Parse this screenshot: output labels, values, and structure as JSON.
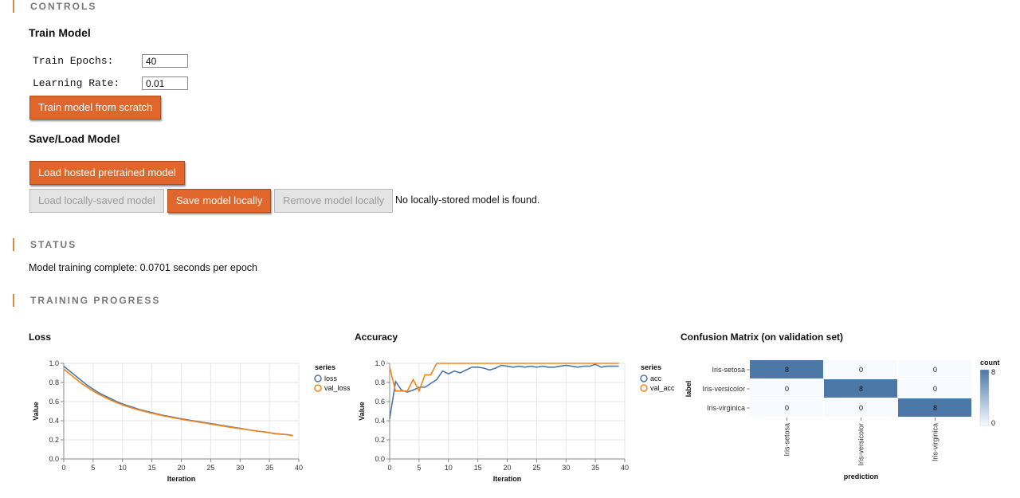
{
  "sections": {
    "controls": "CONTROLS",
    "status": "STATUS",
    "progress": "TRAINING PROGRESS"
  },
  "train": {
    "heading": "Train Model",
    "epochs_label": "Train Epochs:",
    "epochs_value": "40",
    "lr_label": "Learning Rate:",
    "lr_value": "0.01",
    "train_button": "Train model from scratch"
  },
  "saveload": {
    "heading": "Save/Load Model",
    "load_hosted": "Load hosted pretrained model",
    "load_local": "Load locally-saved model",
    "save_local": "Save model locally",
    "remove_local": "Remove model locally",
    "local_status": "No locally-stored model is found."
  },
  "status": {
    "text": "Model training complete: 0.0701 seconds per epoch"
  },
  "colors": {
    "accent": "#e0873d",
    "button": "#e0662b",
    "series_blue": "#4c78a8",
    "series_orange": "#f58518"
  },
  "chart_data": [
    {
      "type": "line",
      "title": "Loss",
      "xlabel": "Iteration",
      "ylabel": "Value",
      "xlim": [
        0,
        40
      ],
      "ylim": [
        0,
        1
      ],
      "x_ticks": [
        0,
        5,
        10,
        15,
        20,
        25,
        30,
        35,
        40
      ],
      "y_ticks": [
        "0.0",
        "0.2",
        "0.4",
        "0.6",
        "0.8",
        "1.0"
      ],
      "grid": true,
      "legend_title": "series",
      "legend_position": "right",
      "x": [
        0,
        1,
        2,
        3,
        4,
        5,
        6,
        7,
        8,
        9,
        10,
        11,
        12,
        13,
        14,
        15,
        16,
        17,
        18,
        19,
        20,
        21,
        22,
        23,
        24,
        25,
        26,
        27,
        28,
        29,
        30,
        31,
        32,
        33,
        34,
        35,
        36,
        37,
        38,
        39
      ],
      "series": [
        {
          "name": "loss",
          "color": "#4c78a8",
          "values": [
            0.97,
            0.92,
            0.87,
            0.82,
            0.77,
            0.73,
            0.69,
            0.66,
            0.63,
            0.6,
            0.575,
            0.555,
            0.535,
            0.515,
            0.5,
            0.485,
            0.47,
            0.455,
            0.445,
            0.432,
            0.42,
            0.41,
            0.4,
            0.39,
            0.38,
            0.37,
            0.36,
            0.35,
            0.34,
            0.33,
            0.32,
            0.31,
            0.3,
            0.29,
            0.285,
            0.275,
            0.265,
            0.26,
            0.255,
            0.245
          ]
        },
        {
          "name": "val_loss",
          "color": "#f58518",
          "values": [
            0.94,
            0.89,
            0.84,
            0.79,
            0.75,
            0.71,
            0.675,
            0.645,
            0.615,
            0.59,
            0.565,
            0.545,
            0.525,
            0.508,
            0.493,
            0.478,
            0.464,
            0.45,
            0.438,
            0.427,
            0.415,
            0.405,
            0.395,
            0.385,
            0.375,
            0.365,
            0.355,
            0.345,
            0.335,
            0.326,
            0.317,
            0.308,
            0.299,
            0.29,
            0.283,
            0.273,
            0.263,
            0.258,
            0.253,
            0.243
          ]
        }
      ]
    },
    {
      "type": "line",
      "title": "Accuracy",
      "xlabel": "Iteration",
      "ylabel": "Value",
      "xlim": [
        0,
        40
      ],
      "ylim": [
        0,
        1
      ],
      "x_ticks": [
        0,
        5,
        10,
        15,
        20,
        25,
        30,
        35,
        40
      ],
      "y_ticks": [
        "0.0",
        "0.2",
        "0.4",
        "0.6",
        "0.8",
        "1.0"
      ],
      "grid": true,
      "legend_title": "series",
      "legend_position": "right",
      "x": [
        0,
        1,
        2,
        3,
        4,
        5,
        6,
        7,
        8,
        9,
        10,
        11,
        12,
        13,
        14,
        15,
        16,
        17,
        18,
        19,
        20,
        21,
        22,
        23,
        24,
        25,
        26,
        27,
        28,
        29,
        30,
        31,
        32,
        33,
        34,
        35,
        36,
        37,
        38,
        39
      ],
      "series": [
        {
          "name": "acc",
          "color": "#4c78a8",
          "values": [
            0.42,
            0.81,
            0.72,
            0.7,
            0.72,
            0.75,
            0.75,
            0.79,
            0.83,
            0.92,
            0.89,
            0.92,
            0.9,
            0.93,
            0.96,
            0.96,
            0.95,
            0.93,
            0.95,
            0.98,
            0.97,
            0.96,
            0.97,
            0.96,
            0.97,
            0.96,
            0.97,
            0.96,
            0.96,
            0.97,
            0.98,
            0.97,
            0.96,
            0.97,
            0.97,
            0.99,
            0.96,
            0.97,
            0.97,
            0.97
          ]
        },
        {
          "name": "val_acc",
          "color": "#f58518",
          "values": [
            0.96,
            0.71,
            0.71,
            0.71,
            0.83,
            0.71,
            0.88,
            0.88,
            1.0,
            1.0,
            1.0,
            1.0,
            1.0,
            1.0,
            1.0,
            1.0,
            1.0,
            1.0,
            1.0,
            1.0,
            1.0,
            1.0,
            1.0,
            1.0,
            1.0,
            1.0,
            1.0,
            1.0,
            1.0,
            1.0,
            1.0,
            1.0,
            1.0,
            1.0,
            1.0,
            1.0,
            1.0,
            1.0,
            1.0,
            1.0
          ]
        }
      ]
    },
    {
      "type": "heatmap",
      "title": "Confusion Matrix (on validation set)",
      "xlabel": "prediction",
      "ylabel": "label",
      "row_labels": [
        "Iris-setosa",
        "Iris-versicolor",
        "Iris-virginica"
      ],
      "col_labels": [
        "Iris-setosa",
        "Iris-versicolor",
        "Iris-virginica"
      ],
      "values": [
        [
          8,
          0,
          0
        ],
        [
          0,
          8,
          0
        ],
        [
          0,
          0,
          8
        ]
      ],
      "legend_title": "count",
      "legend_max": "8",
      "legend_min": "0",
      "color_range": [
        "#f7fbff",
        "#4c78a8"
      ]
    }
  ]
}
